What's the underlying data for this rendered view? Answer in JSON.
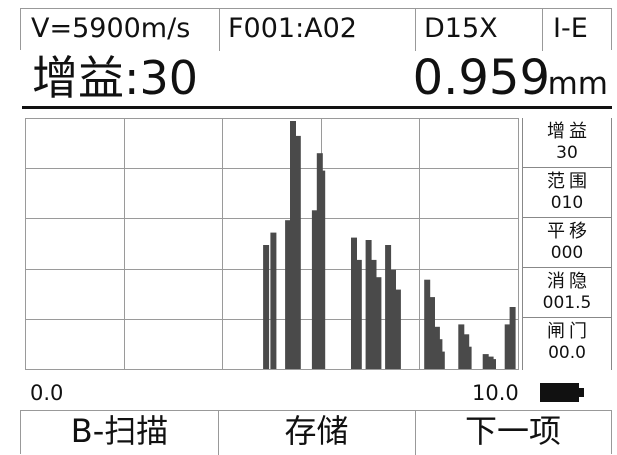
{
  "status_bar": {
    "velocity": "V=5900m/s",
    "file": "F001:A02",
    "probe": "D15X",
    "mode": "I-E"
  },
  "headline": {
    "gain": "增益:30",
    "depth_value": "0.959",
    "depth_unit": "mm"
  },
  "side_panel": [
    {
      "label": "增益",
      "value": "30"
    },
    {
      "label": "范围",
      "value": "010"
    },
    {
      "label": "平移",
      "value": "000"
    },
    {
      "label": "消隐",
      "value": "001.5"
    },
    {
      "label": "闸门",
      "value": "00.0"
    }
  ],
  "scale": {
    "min": "0.0",
    "max": "10.0"
  },
  "battery_icon": "battery-full-icon",
  "menu": {
    "b_scan": "B-扫描",
    "save": "存储",
    "next": "下一项"
  },
  "colors": {
    "trace": "#4a4a4a",
    "grid": "#9a9a9a",
    "text": "#111111"
  },
  "chart_data": {
    "type": "bar",
    "x_range": [
      0.0,
      10.0
    ],
    "y_range": [
      0,
      100
    ],
    "grid": true,
    "groups": [
      {
        "x": [
          4.9,
          5.05
        ],
        "values": [
          50,
          55
        ]
      },
      {
        "x": [
          5.35,
          5.45,
          5.55
        ],
        "values": [
          60,
          100,
          94
        ]
      },
      {
        "x": [
          5.9,
          6.0,
          6.05
        ],
        "values": [
          64,
          87,
          80
        ]
      },
      {
        "x": [
          6.7,
          6.8
        ],
        "values": [
          53,
          44
        ]
      },
      {
        "x": [
          7.0,
          7.1,
          7.2
        ],
        "values": [
          52,
          44,
          37
        ]
      },
      {
        "x": [
          7.4,
          7.5,
          7.6
        ],
        "values": [
          50,
          40,
          32
        ]
      },
      {
        "x": [
          8.2,
          8.3
        ],
        "values": [
          36,
          29
        ]
      },
      {
        "x": [
          8.4,
          8.45,
          8.5
        ],
        "values": [
          17,
          12,
          7
        ]
      },
      {
        "x": [
          8.9,
          9.0,
          9.05
        ],
        "values": [
          18,
          14,
          9
        ]
      },
      {
        "x": [
          9.4,
          9.5,
          9.55
        ],
        "values": [
          6,
          5,
          4
        ]
      },
      {
        "x": [
          9.85,
          9.95
        ],
        "values": [
          18,
          25
        ]
      }
    ]
  }
}
